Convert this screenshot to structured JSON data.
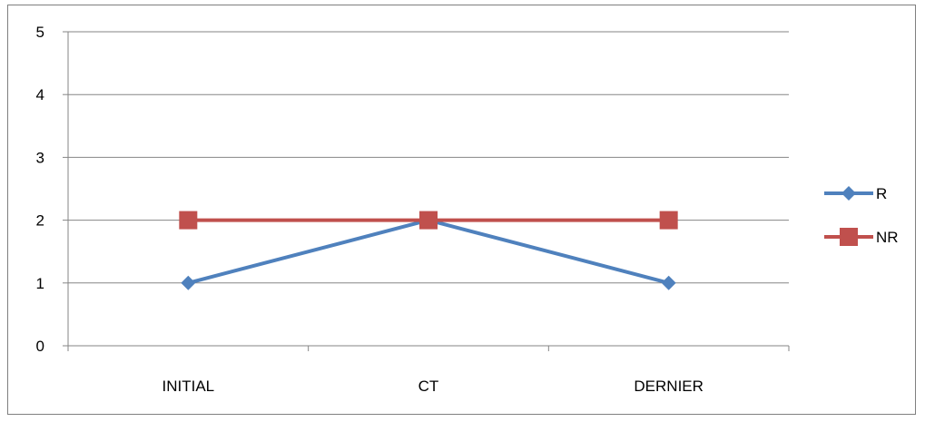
{
  "chart_data": {
    "type": "line",
    "categories": [
      "INITIAL",
      "CT",
      "DERNIER"
    ],
    "series": [
      {
        "name": "R",
        "values": [
          1,
          2,
          1
        ],
        "color": "#4F81BD",
        "marker": "diamond"
      },
      {
        "name": "NR",
        "values": [
          2,
          2,
          2
        ],
        "color": "#C0504D",
        "marker": "square"
      }
    ],
    "ylim": [
      0,
      5
    ],
    "yticks": [
      "0",
      "1",
      "2",
      "3",
      "4",
      "5"
    ],
    "grid": true,
    "legend_position": "right",
    "title": "",
    "xlabel": "",
    "ylabel": ""
  }
}
